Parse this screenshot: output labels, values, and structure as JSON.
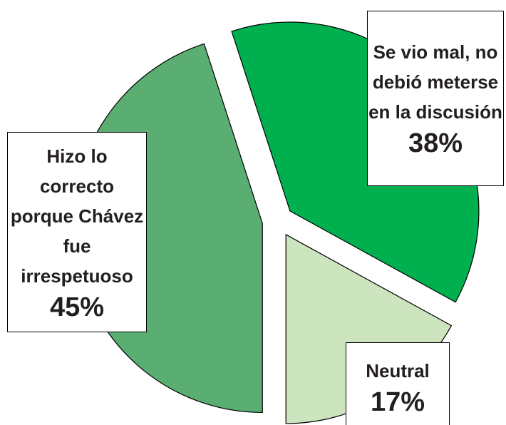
{
  "chart_data": {
    "type": "pie",
    "categories": [
      "Se vio mal, no debió meterse en la discusión",
      "Neutral",
      "Hizo lo correcto porque Chávez fue irrespetuoso"
    ],
    "values": [
      38,
      17,
      45
    ],
    "value_labels": [
      "38%",
      "17%",
      "45%"
    ],
    "colors": [
      "#00b04f",
      "#cde5bf",
      "#5aae72"
    ],
    "startangle": -18
  }
}
